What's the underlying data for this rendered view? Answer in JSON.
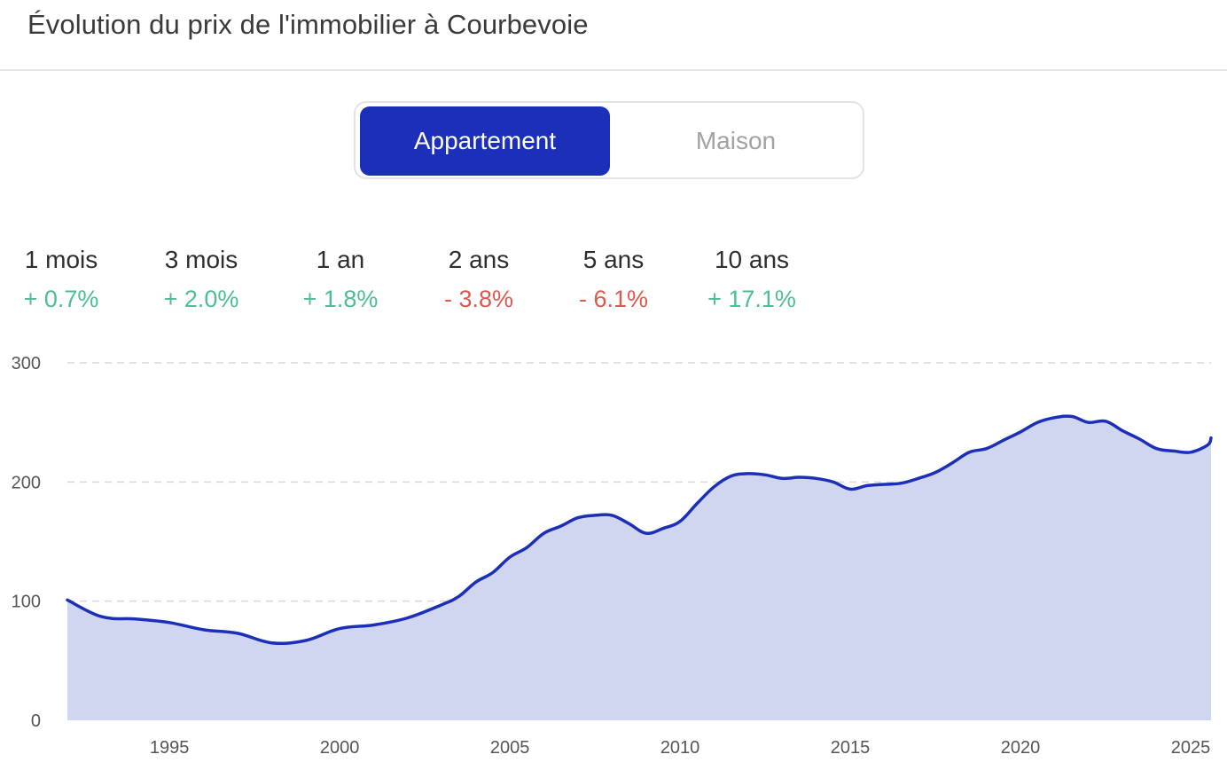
{
  "header": {
    "title": "Évolution du prix de l'immobilier à Courbevoie"
  },
  "toggle": {
    "options": [
      "Appartement",
      "Maison"
    ],
    "selected": "Appartement"
  },
  "stats": [
    {
      "label": "1 mois",
      "value": "+ 0.7%",
      "trend": "up"
    },
    {
      "label": "3 mois",
      "value": "+ 2.0%",
      "trend": "up"
    },
    {
      "label": "1 an",
      "value": "+ 1.8%",
      "trend": "up"
    },
    {
      "label": "2 ans",
      "value": "- 3.8%",
      "trend": "down"
    },
    {
      "label": "5 ans",
      "value": "- 6.1%",
      "trend": "down"
    },
    {
      "label": "10 ans",
      "value": "+ 17.1%",
      "trend": "up"
    }
  ],
  "colors": {
    "accent": "#1c2fb8",
    "area_fill": "#d0d5f0",
    "positive": "#4cbe92",
    "negative": "#e0584c"
  },
  "chart_data": {
    "type": "area",
    "title": "",
    "xlabel": "",
    "ylabel": "",
    "xlim": [
      1992,
      2025.6
    ],
    "ylim": [
      0,
      300
    ],
    "yticks": [
      0,
      100,
      200,
      300
    ],
    "xticks": [
      1995,
      2000,
      2005,
      2010,
      2015,
      2020,
      2025
    ],
    "grid": "horizontal dashed",
    "legend": "none",
    "series": [
      {
        "x": [
          1992.0,
          1993.0,
          1994.0,
          1995.0,
          1996.0,
          1997.0,
          1998.0,
          1999.0,
          2000.0,
          2001.0,
          2002.0,
          2003.0,
          2003.5,
          2004.0,
          2004.5,
          2005.0,
          2005.5,
          2006.0,
          2006.5,
          2007.0,
          2007.5,
          2008.0,
          2008.5,
          2009.0,
          2009.5,
          2010.0,
          2010.5,
          2011.0,
          2011.5,
          2012.0,
          2012.5,
          2013.0,
          2013.5,
          2014.0,
          2014.5,
          2015.0,
          2015.5,
          2016.0,
          2016.5,
          2017.0,
          2017.5,
          2018.0,
          2018.5,
          2019.0,
          2019.5,
          2020.0,
          2020.5,
          2021.0,
          2021.5,
          2022.0,
          2022.5,
          2023.0,
          2023.5,
          2024.0,
          2024.5,
          2025.0,
          2025.5
        ],
        "values": [
          101,
          87,
          85,
          82,
          76,
          73,
          65,
          67,
          77,
          80,
          86,
          97,
          104,
          116,
          124,
          137,
          145,
          157,
          163,
          170,
          172,
          172,
          165,
          157,
          161,
          167,
          182,
          196,
          205,
          207,
          206,
          203,
          204,
          203,
          200,
          194,
          197,
          198,
          199,
          203,
          208,
          216,
          225,
          228,
          235,
          242,
          250,
          254,
          255,
          250,
          251,
          243,
          236,
          228,
          226,
          225,
          231
        ]
      }
    ]
  }
}
